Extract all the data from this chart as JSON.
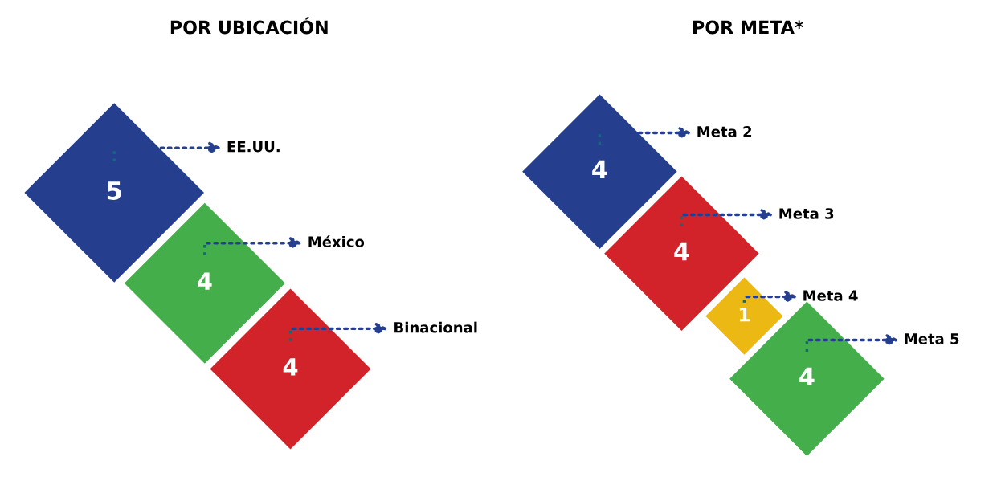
{
  "chart_data": [
    {
      "type": "other",
      "title": "POR UBICACIÓN",
      "categories": [
        "EE.UU.",
        "México",
        "Binacional"
      ],
      "values": [
        5,
        4,
        4
      ],
      "colors": [
        "#253f8e",
        "#43ae4a",
        "#d2232a"
      ],
      "data_labels": true
    },
    {
      "type": "other",
      "title": "POR META*",
      "categories": [
        "Meta 2",
        "Meta 3",
        "Meta 4",
        "Meta 5"
      ],
      "values": [
        4,
        4,
        1,
        4
      ],
      "colors": [
        "#253f8e",
        "#d2232a",
        "#ecb813",
        "#43ae4a"
      ],
      "data_labels": true
    }
  ]
}
